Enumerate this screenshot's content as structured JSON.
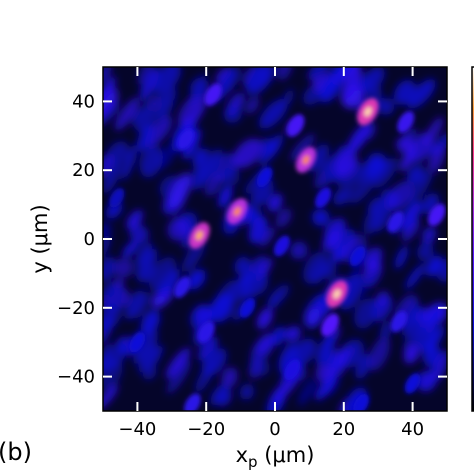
{
  "chart_data": {
    "type": "heatmap",
    "panel_label": "(b)",
    "xlabel": "x_p (μm)",
    "ylabel": "y (μm)",
    "xlim": [
      -50,
      50
    ],
    "ylim": [
      -50,
      50
    ],
    "x_ticks": [
      -40,
      -20,
      0,
      20,
      40
    ],
    "y_ticks": [
      -40,
      -20,
      0,
      20,
      40
    ],
    "x_tick_labels": [
      "−40",
      "−20",
      "0",
      "20",
      "40"
    ],
    "y_tick_labels": [
      "−40",
      "−20",
      "0",
      "20",
      "40"
    ],
    "colormap": "gnuplot2",
    "colorbar_visible": true,
    "speckle_field": {
      "description_units": "relative intensity 0-1",
      "bright_spots": [
        {
          "x": 27,
          "y": 37,
          "intensity": 0.95
        },
        {
          "x": 9,
          "y": 23,
          "intensity": 0.85
        },
        {
          "x": 18,
          "y": -16,
          "intensity": 0.95
        },
        {
          "x": -22,
          "y": 1,
          "intensity": 0.9
        },
        {
          "x": -11,
          "y": 8,
          "intensity": 0.85
        },
        {
          "x": 16,
          "y": -25,
          "intensity": 0.6
        },
        {
          "x": -18,
          "y": 42,
          "intensity": 0.55
        },
        {
          "x": 6,
          "y": 33,
          "intensity": 0.55
        },
        {
          "x": 38,
          "y": 34,
          "intensity": 0.5
        },
        {
          "x": -26,
          "y": 29,
          "intensity": 0.45
        },
        {
          "x": -27,
          "y": -14,
          "intensity": 0.45
        },
        {
          "x": 2,
          "y": -2,
          "intensity": 0.4
        },
        {
          "x": 35,
          "y": 5,
          "intensity": 0.45
        },
        {
          "x": 47,
          "y": 7,
          "intensity": 0.55
        },
        {
          "x": -20,
          "y": -27,
          "intensity": 0.45
        },
        {
          "x": 5,
          "y": -38,
          "intensity": 0.4
        },
        {
          "x": -24,
          "y": -48,
          "intensity": 0.45
        },
        {
          "x": 25,
          "y": -48,
          "intensity": 0.35
        },
        {
          "x": 36,
          "y": -24,
          "intensity": 0.45
        },
        {
          "x": -40,
          "y": -30,
          "intensity": 0.35
        },
        {
          "x": 14,
          "y": 12,
          "intensity": 0.4
        },
        {
          "x": -3,
          "y": 18,
          "intensity": 0.35
        },
        {
          "x": 40,
          "y": -42,
          "intensity": 0.35
        },
        {
          "x": -46,
          "y": 12,
          "intensity": 0.3
        },
        {
          "x": 24,
          "y": -5,
          "intensity": 0.35
        },
        {
          "x": -8,
          "y": -20,
          "intensity": 0.35
        }
      ]
    }
  }
}
